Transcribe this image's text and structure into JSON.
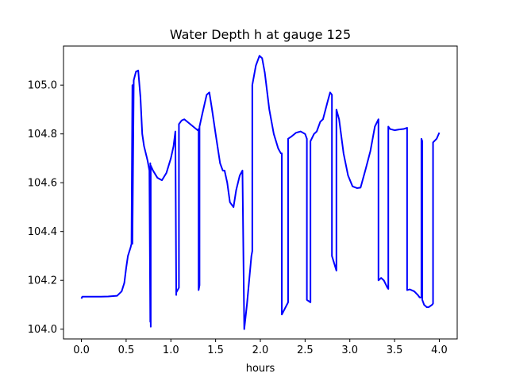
{
  "chart_data": {
    "type": "line",
    "title": "Water Depth h at gauge 125",
    "xlabel": "hours",
    "ylabel": "",
    "xlim": [
      -0.2,
      4.2
    ],
    "ylim": [
      103.96,
      105.16
    ],
    "xticks": [
      0.0,
      0.5,
      1.0,
      1.5,
      2.0,
      2.5,
      3.0,
      3.5,
      4.0
    ],
    "xtick_labels": [
      "0.0",
      "0.5",
      "1.0",
      "1.5",
      "2.0",
      "2.5",
      "3.0",
      "3.5",
      "4.0"
    ],
    "yticks": [
      104.0,
      104.2,
      104.4,
      104.6,
      104.8,
      105.0
    ],
    "ytick_labels": [
      "104.0",
      "104.2",
      "104.4",
      "104.6",
      "104.8",
      "105.0"
    ],
    "grid": false,
    "line_color": "#0000ff",
    "series": [
      {
        "x": [
          0.0,
          0.01,
          0.1,
          0.2,
          0.3,
          0.4,
          0.45,
          0.48,
          0.5,
          0.52,
          0.55,
          0.56,
          0.57,
          0.57,
          0.585,
          0.61,
          0.635,
          0.66,
          0.68,
          0.7,
          0.72,
          0.74,
          0.76,
          0.77,
          0.77,
          0.775,
          0.775,
          0.8,
          0.85,
          0.9,
          0.95,
          1.0,
          1.03,
          1.05,
          1.06,
          1.06,
          1.09,
          1.09,
          1.12,
          1.15,
          1.2,
          1.25,
          1.3,
          1.31,
          1.31,
          1.32,
          1.32,
          1.35,
          1.4,
          1.43,
          1.46,
          1.5,
          1.55,
          1.58,
          1.6,
          1.63,
          1.66,
          1.7,
          1.73,
          1.77,
          1.8,
          1.82,
          1.82,
          1.85,
          1.9,
          1.91,
          1.91,
          1.95,
          1.99,
          2.02,
          2.05,
          2.1,
          2.15,
          2.2,
          2.23,
          2.24,
          2.24,
          2.31,
          2.31,
          2.35,
          2.4,
          2.45,
          2.5,
          2.52,
          2.52,
          2.56,
          2.56,
          2.6,
          2.63,
          2.67,
          2.7,
          2.75,
          2.78,
          2.8,
          2.8,
          2.85,
          2.85,
          2.88,
          2.93,
          2.98,
          3.03,
          3.08,
          3.12,
          3.15,
          3.18,
          3.23,
          3.28,
          3.32,
          3.32,
          3.35,
          3.38,
          3.42,
          3.43,
          3.43,
          3.45,
          3.5,
          3.55,
          3.6,
          3.64,
          3.64,
          3.67,
          3.72,
          3.76,
          3.78,
          3.8,
          3.8,
          3.81,
          3.81,
          3.83,
          3.86,
          3.88,
          3.9,
          3.92,
          3.93,
          3.93,
          3.97,
          4.0
        ],
        "y": [
          104.125,
          104.133,
          104.133,
          104.133,
          104.134,
          104.137,
          104.155,
          104.19,
          104.25,
          104.3,
          104.335,
          104.35,
          105.0,
          104.35,
          105.02,
          105.055,
          105.06,
          104.95,
          104.8,
          104.75,
          104.72,
          104.69,
          104.65,
          104.03,
          104.68,
          104.01,
          104.67,
          104.65,
          104.62,
          104.61,
          104.64,
          104.7,
          104.75,
          104.81,
          104.14,
          104.15,
          104.17,
          104.84,
          104.855,
          104.86,
          104.845,
          104.83,
          104.815,
          104.82,
          104.16,
          104.18,
          104.83,
          104.88,
          104.96,
          104.97,
          104.9,
          104.8,
          104.68,
          104.65,
          104.65,
          104.6,
          104.52,
          104.5,
          104.57,
          104.63,
          104.65,
          104.0,
          104.0,
          104.1,
          104.3,
          104.32,
          105.0,
          105.08,
          105.12,
          105.11,
          105.05,
          104.9,
          104.8,
          104.74,
          104.72,
          104.72,
          104.06,
          104.11,
          104.78,
          104.79,
          104.805,
          104.81,
          104.8,
          104.78,
          104.12,
          104.11,
          104.77,
          104.8,
          104.81,
          104.85,
          104.86,
          104.93,
          104.97,
          104.96,
          104.3,
          104.24,
          104.9,
          104.86,
          104.72,
          104.63,
          104.585,
          104.578,
          104.58,
          104.62,
          104.66,
          104.73,
          104.83,
          104.86,
          104.2,
          104.21,
          104.2,
          104.17,
          104.165,
          104.83,
          104.82,
          104.815,
          104.818,
          104.82,
          104.825,
          104.16,
          104.163,
          104.155,
          104.14,
          104.13,
          104.13,
          104.78,
          104.77,
          104.12,
          104.1,
          104.09,
          104.09,
          104.095,
          104.1,
          104.105,
          104.765,
          104.78,
          104.805
        ]
      }
    ]
  }
}
